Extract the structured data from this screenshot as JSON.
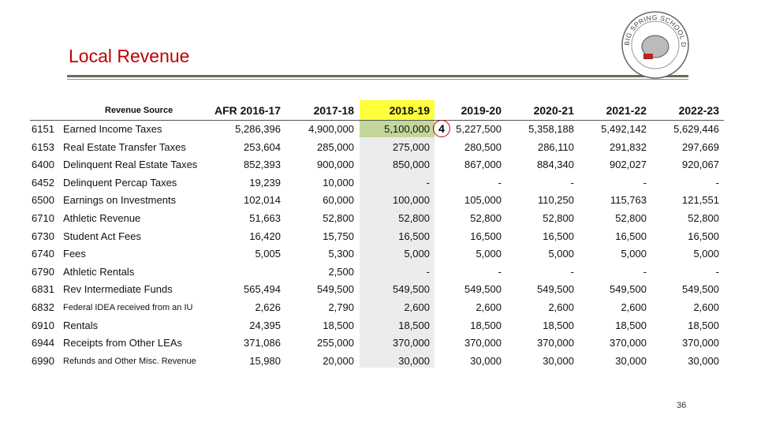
{
  "header": {
    "title": "Local Revenue",
    "logo_text": "BIG SPRING SCHOOL DISTRICT"
  },
  "table": {
    "headers": [
      "Revenue Source",
      "AFR 2016-17",
      "2017-18",
      "2018-19",
      "2019-20",
      "2020-21",
      "2021-22",
      "2022-23"
    ],
    "rows": [
      [
        "6151",
        "Earned Income Taxes",
        "5,286,396",
        "4,900,000",
        "5,100,000",
        "5,227,500",
        "5,358,188",
        "5,492,142",
        "5,629,446"
      ],
      [
        "6153",
        "Real Estate Transfer Taxes",
        "253,604",
        "285,000",
        "275,000",
        "280,500",
        "286,110",
        "291,832",
        "297,669"
      ],
      [
        "6400",
        "Delinquent Real Estate Taxes",
        "852,393",
        "900,000",
        "850,000",
        "867,000",
        "884,340",
        "902,027",
        "920,067"
      ],
      [
        "6452",
        "Delinquent Percap Taxes",
        "19,239",
        "10,000",
        "-",
        "-",
        "-",
        "-",
        "-"
      ],
      [
        "6500",
        "Earnings on Investments",
        "102,014",
        "60,000",
        "100,000",
        "105,000",
        "110,250",
        "115,763",
        "121,551"
      ],
      [
        "6710",
        "Athletic Revenue",
        "51,663",
        "52,800",
        "52,800",
        "52,800",
        "52,800",
        "52,800",
        "52,800"
      ],
      [
        "6730",
        "Student Act Fees",
        "16,420",
        "15,750",
        "16,500",
        "16,500",
        "16,500",
        "16,500",
        "16,500"
      ],
      [
        "6740",
        "Fees",
        "5,005",
        "5,300",
        "5,000",
        "5,000",
        "5,000",
        "5,000",
        "5,000"
      ],
      [
        "6790",
        "Athletic Rentals",
        null,
        "2,500",
        "-",
        "-",
        "-",
        "-",
        "-"
      ],
      [
        "6831",
        "Rev Intermediate Funds",
        "565,494",
        "549,500",
        "549,500",
        "549,500",
        "549,500",
        "549,500",
        "549,500"
      ],
      [
        "6832",
        "Federal IDEA received from an IU",
        "2,626",
        "2,790",
        "2,600",
        "2,600",
        "2,600",
        "2,600",
        "2,600"
      ],
      [
        "6910",
        "Rentals",
        "24,395",
        "18,500",
        "18,500",
        "18,500",
        "18,500",
        "18,500",
        "18,500"
      ],
      [
        "6944",
        "Receipts from Other LEAs",
        "371,086",
        "255,000",
        "370,000",
        "370,000",
        "370,000",
        "370,000",
        "370,000"
      ],
      [
        "6990",
        "Refunds and Other Misc. Revenue",
        "15,980",
        "20,000",
        "30,000",
        "30,000",
        "30,000",
        "30,000",
        "30,000"
      ]
    ]
  },
  "annotation": "4",
  "page_number": "36"
}
